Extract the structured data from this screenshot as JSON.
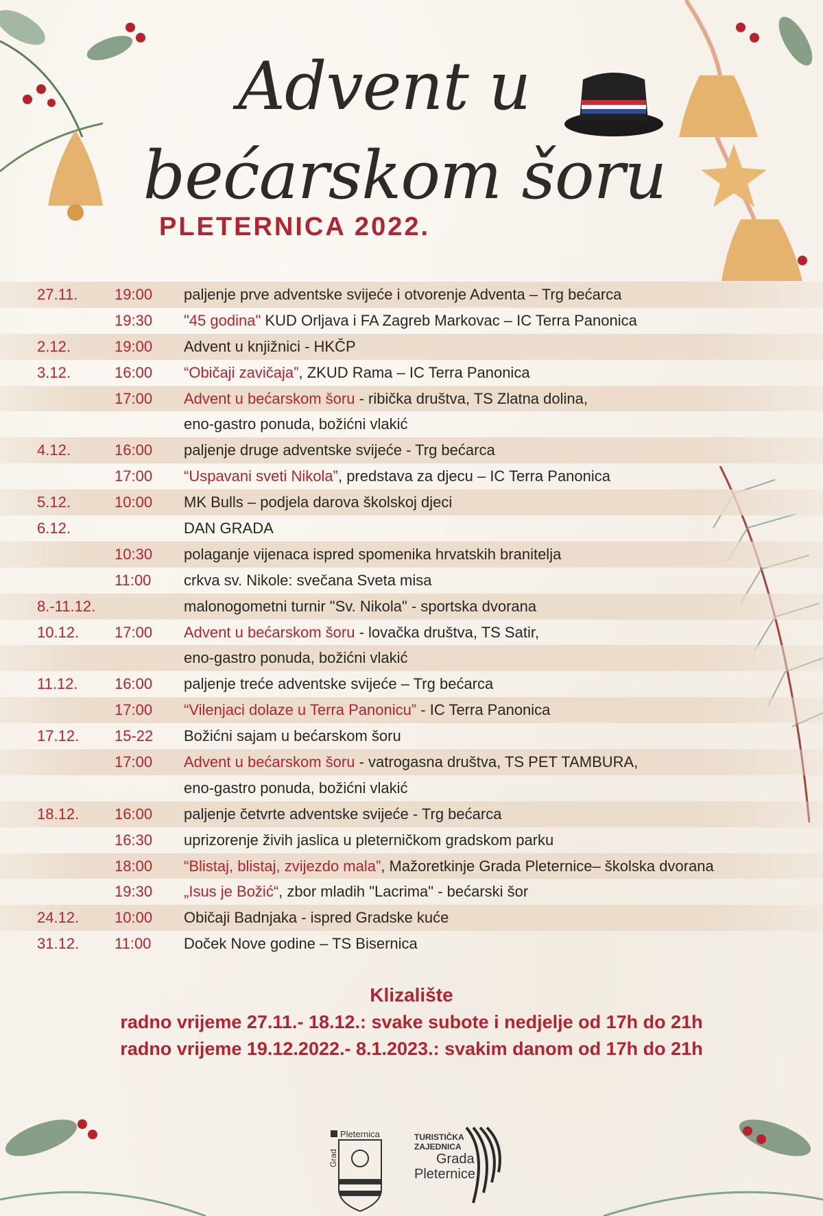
{
  "header": {
    "title_line1": "Advent u",
    "title_line2": "bećarskom šoru",
    "subtitle": "PLETERNICA 2022."
  },
  "colors": {
    "accent": "#b02531",
    "text": "#2b2522",
    "stripe": "#ebdccb",
    "background": "#f6f1ea"
  },
  "schedule": [
    {
      "date": "27.11.",
      "time": "19:00",
      "highlight": "",
      "text": "paljenje prve adventske svijeće i otvorenje Adventa – Trg bećarca"
    },
    {
      "date": "",
      "time": "19:30",
      "highlight": "\"45 godina\"",
      "text": " KUD Orljava i FA Zagreb Markovac – IC Terra Panonica"
    },
    {
      "date": "2.12.",
      "time": "19:00",
      "highlight": "",
      "text": "Advent u knjižnici - HKČP"
    },
    {
      "date": "3.12.",
      "time": "16:00",
      "highlight": "“Običaji zavičaja”",
      "text": ", ZKUD Rama – IC Terra Panonica"
    },
    {
      "date": "",
      "time": "17:00",
      "highlight": "Advent u bećarskom šoru",
      "text": " - ribička društva, TS Zlatna dolina,"
    },
    {
      "date": "",
      "time": "",
      "highlight": "",
      "text": "eno-gastro ponuda, božićni vlakić"
    },
    {
      "date": "4.12.",
      "time": "16:00",
      "highlight": "",
      "text": "paljenje druge adventske svijeće - Trg bećarca"
    },
    {
      "date": "",
      "time": "17:00",
      "highlight": "“Uspavani sveti Nikola”",
      "text": ", predstava za djecu – IC Terra Panonica"
    },
    {
      "date": "5.12.",
      "time": "10:00",
      "highlight": "",
      "text": "MK Bulls – podjela darova školskoj djeci"
    },
    {
      "date": "6.12.",
      "time": "",
      "highlight": "",
      "text": "DAN GRADA"
    },
    {
      "date": "",
      "time": "10:30",
      "highlight": "",
      "text": "polaganje vijenaca ispred spomenika hrvatskih branitelja"
    },
    {
      "date": "",
      "time": "11:00",
      "highlight": "",
      "text": "crkva sv. Nikole: svečana Sveta misa"
    },
    {
      "date": "8.-11.12.",
      "time": "",
      "highlight": "",
      "text": "malonogometni turnir \"Sv. Nikola\" - sportska dvorana"
    },
    {
      "date": "10.12.",
      "time": "17:00",
      "highlight": "Advent u bećarskom šoru",
      "text": " - lovačka društva, TS Satir,"
    },
    {
      "date": "",
      "time": "",
      "highlight": "",
      "text": "eno-gastro ponuda, božićni vlakić"
    },
    {
      "date": "11.12.",
      "time": "16:00",
      "highlight": "",
      "text": "paljenje treće adventske svijeće – Trg bećarca"
    },
    {
      "date": "",
      "time": "17:00",
      "highlight": "“Vilenjaci dolaze u Terra Panonicu”",
      "text": " - IC Terra Panonica"
    },
    {
      "date": "17.12.",
      "time": "15-22",
      "highlight": "",
      "text": "Božićni sajam u bećarskom šoru"
    },
    {
      "date": "",
      "time": "17:00",
      "highlight": "Advent u bećarskom šoru",
      "text": " - vatrogasna društva, TS PET TAMBURA,"
    },
    {
      "date": "",
      "time": "",
      "highlight": "",
      "text": "eno-gastro ponuda, božićni vlakić"
    },
    {
      "date": "18.12.",
      "time": "16:00",
      "highlight": "",
      "text": "paljenje četvrte adventske svijeće - Trg bećarca"
    },
    {
      "date": "",
      "time": "16:30",
      "highlight": "",
      "text": "uprizorenje živih jaslica u pleterničkom gradskom parku"
    },
    {
      "date": "",
      "time": "18:00",
      "highlight": "“Blistaj, blistaj, zvijezdo mala”",
      "text": ", Mažoretkinje Grada Pleternice– školska dvorana"
    },
    {
      "date": "",
      "time": "19:30",
      "highlight": "„Isus je Božić“",
      "text": ", zbor mladih \"Lacrima\" - bećarski šor"
    },
    {
      "date": "24.12.",
      "time": "10:00",
      "highlight": "",
      "text": "Običaji Badnjaka - ispred Gradske kuće"
    },
    {
      "date": "31.12.",
      "time": "11:00",
      "highlight": "",
      "text": "Doček Nove godine – TS Bisernica"
    }
  ],
  "skating": {
    "title": "Klizalište",
    "line1": "radno vrijeme 27.11.- 18.12.: svake subote i nedjelje od 17h do 21h",
    "line2": "radno vrijeme 19.12.2022.- 8.1.2023.: svakim danom od 17h do 21h"
  },
  "footer": {
    "logo_city": {
      "word_vertical": "Grad",
      "word": "Pleternica"
    },
    "logo_tourism": {
      "line1": "TURISTIČKA",
      "line2": "ZAJEDNICA",
      "line3": "Grada",
      "line4": "Pleternice"
    }
  }
}
